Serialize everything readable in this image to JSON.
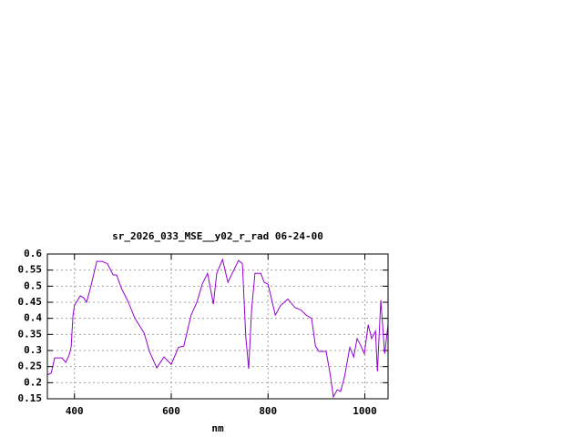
{
  "chart_data": {
    "type": "line",
    "title": "sr_2026_033_MSE__y02_r_rad 06-24-00",
    "xlabel": "nm",
    "color": "#9400d3",
    "grid": true,
    "x": [
      344,
      352,
      359,
      374,
      382,
      389,
      393,
      397,
      400,
      412,
      419,
      425,
      434,
      446,
      457,
      468,
      480,
      487,
      498,
      510,
      525,
      544,
      555,
      570,
      585,
      600,
      615,
      626,
      641,
      653,
      664,
      675,
      687,
      694,
      706,
      717,
      728,
      739,
      747,
      754,
      760,
      766,
      773,
      785,
      792,
      800,
      815,
      826,
      841,
      856,
      867,
      879,
      890,
      898,
      905,
      920,
      928,
      935,
      943,
      950,
      958,
      969,
      977,
      984,
      992,
      999,
      1007,
      1014,
      1022,
      1026,
      1033,
      1041,
      1048
    ],
    "values": [
      0.224,
      0.23,
      0.277,
      0.277,
      0.263,
      0.286,
      0.31,
      0.41,
      0.44,
      0.47,
      0.464,
      0.45,
      0.5,
      0.577,
      0.577,
      0.57,
      0.535,
      0.535,
      0.49,
      0.455,
      0.4,
      0.354,
      0.297,
      0.246,
      0.28,
      0.257,
      0.31,
      0.314,
      0.41,
      0.45,
      0.506,
      0.54,
      0.444,
      0.54,
      0.583,
      0.512,
      0.546,
      0.58,
      0.57,
      0.343,
      0.243,
      0.427,
      0.54,
      0.54,
      0.512,
      0.506,
      0.41,
      0.44,
      0.46,
      0.433,
      0.427,
      0.41,
      0.4,
      0.314,
      0.297,
      0.297,
      0.23,
      0.156,
      0.178,
      0.173,
      0.218,
      0.31,
      0.28,
      0.337,
      0.314,
      0.29,
      0.38,
      0.337,
      0.36,
      0.235,
      0.456,
      0.29,
      0.38
    ],
    "xlim": [
      344,
      1048
    ],
    "xticks": [
      400,
      600,
      800,
      1000
    ],
    "ylim": [
      0.15,
      0.6
    ],
    "yticks": [
      0.15,
      0.2,
      0.25,
      0.3,
      0.35,
      0.4,
      0.45,
      0.5,
      0.55,
      0.6
    ]
  }
}
